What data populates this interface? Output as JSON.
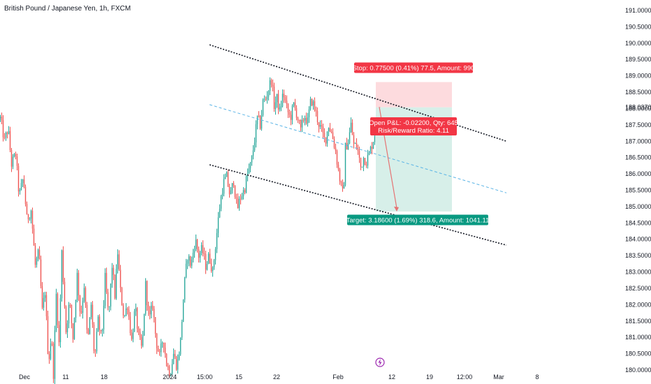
{
  "header": {
    "title": "British Pound / Japanese Yen, 1h, FXCM"
  },
  "colors": {
    "up": "#26a69a",
    "down": "#ef5350",
    "stop_zone": "#fddbde",
    "target_zone": "#d7efe9",
    "stop_label": "#f23645",
    "target_label": "#089981",
    "pnl_label": "#f23645",
    "mid_line": "#5ab4e6",
    "channel_line": "#131722",
    "arrow": "#e57373",
    "event_icon": "#9c27b0"
  },
  "icons": {
    "event": "lightning-icon"
  },
  "chart_data": {
    "type": "candlestick",
    "symbol": "British Pound / Japanese Yen",
    "interval": "1h",
    "source": "FXCM",
    "ylim": [
      179.8,
      191.2
    ],
    "y_ticks": [
      "191.00000",
      "190.50000",
      "190.00000",
      "189.50000",
      "189.00000",
      "188.50000",
      "188.00000",
      "187.50000",
      "187.00000",
      "186.50000",
      "186.00000",
      "185.50000",
      "185.00000",
      "184.50000",
      "184.00000",
      "183.50000",
      "183.00000",
      "182.50000",
      "182.00000",
      "181.50000",
      "181.00000",
      "180.50000",
      "180.00000"
    ],
    "x_ticks": [
      "Dec",
      "11",
      "18",
      "2024",
      "15:00",
      "15",
      "22",
      "Feb",
      "12",
      "19",
      "12:00",
      "Mar",
      "8"
    ],
    "current_price": "188.03700",
    "anchors": [
      [
        0,
        187.7
      ],
      [
        6,
        187.0
      ],
      [
        11,
        187.4
      ],
      [
        16,
        186.3
      ],
      [
        22,
        186.6
      ],
      [
        27,
        185.3
      ],
      [
        33,
        185.9
      ],
      [
        38,
        184.6
      ],
      [
        44,
        184.9
      ],
      [
        50,
        183.2
      ],
      [
        55,
        183.6
      ],
      [
        60,
        181.8
      ],
      [
        64,
        182.4
      ],
      [
        69,
        180.2
      ],
      [
        73,
        181.1
      ],
      [
        76,
        179.9
      ],
      [
        80,
        182.3
      ],
      [
        84,
        180.8
      ],
      [
        88,
        183.6
      ],
      [
        94,
        181.2
      ],
      [
        99,
        182.1
      ],
      [
        104,
        181.0
      ],
      [
        110,
        182.9
      ],
      [
        115,
        181.6
      ],
      [
        120,
        182.6
      ],
      [
        125,
        180.8
      ],
      [
        130,
        182.0
      ],
      [
        135,
        180.3
      ],
      [
        140,
        181.5
      ],
      [
        145,
        180.9
      ],
      [
        150,
        182.8
      ],
      [
        155,
        181.6
      ],
      [
        160,
        183.2
      ],
      [
        164,
        182.3
      ],
      [
        168,
        183.6
      ],
      [
        172,
        182.4
      ],
      [
        177,
        181.6
      ],
      [
        182,
        182.0
      ],
      [
        188,
        180.9
      ],
      [
        193,
        181.9
      ],
      [
        198,
        181.0
      ],
      [
        203,
        180.6
      ],
      [
        208,
        182.6
      ],
      [
        213,
        181.5
      ],
      [
        218,
        182.0
      ],
      [
        223,
        180.9
      ],
      [
        228,
        180.4
      ],
      [
        233,
        181.0
      ],
      [
        238,
        180.2
      ],
      [
        243,
        179.9
      ],
      [
        248,
        180.5
      ],
      [
        253,
        180.1
      ],
      [
        258,
        180.9
      ],
      [
        263,
        182.5
      ],
      [
        268,
        183.5
      ],
      [
        273,
        183.2
      ],
      [
        279,
        184.0
      ],
      [
        284,
        183.5
      ],
      [
        289,
        183.7
      ],
      [
        294,
        183.2
      ],
      [
        299,
        183.5
      ],
      [
        304,
        183.0
      ],
      [
        309,
        184.0
      ],
      [
        314,
        185.0
      ],
      [
        319,
        185.7
      ],
      [
        324,
        185.9
      ],
      [
        329,
        185.3
      ],
      [
        334,
        185.8
      ],
      [
        339,
        184.9
      ],
      [
        344,
        185.3
      ],
      [
        349,
        185.5
      ],
      [
        354,
        186.0
      ],
      [
        359,
        186.3
      ],
      [
        363,
        186.9
      ],
      [
        368,
        187.7
      ],
      [
        372,
        187.5
      ],
      [
        376,
        188.2
      ],
      [
        380,
        188.3
      ],
      [
        384,
        188.6
      ],
      [
        388,
        188.9
      ],
      [
        392,
        188.1
      ],
      [
        396,
        188.3
      ],
      [
        400,
        187.9
      ],
      [
        405,
        188.5
      ],
      [
        410,
        188.0
      ],
      [
        415,
        187.7
      ],
      [
        420,
        188.1
      ],
      [
        425,
        187.8
      ],
      [
        430,
        187.3
      ],
      [
        435,
        187.8
      ],
      [
        440,
        187.6
      ],
      [
        445,
        188.3
      ],
      [
        450,
        188.0
      ],
      [
        455,
        187.6
      ],
      [
        460,
        187.3
      ],
      [
        465,
        187.0
      ],
      [
        470,
        187.5
      ],
      [
        475,
        187.2
      ],
      [
        480,
        186.7
      ],
      [
        484,
        186.1
      ],
      [
        488,
        185.6
      ],
      [
        491,
        185.3
      ],
      [
        494,
        186.8
      ],
      [
        498,
        187.0
      ],
      [
        502,
        187.5
      ],
      [
        506,
        186.9
      ],
      [
        511,
        186.8
      ],
      [
        516,
        186.2
      ],
      [
        520,
        186.5
      ],
      [
        524,
        186.4
      ],
      [
        528,
        186.6
      ],
      [
        532,
        186.9
      ],
      [
        536,
        187.2
      ],
      [
        540,
        187.6
      ],
      [
        544,
        188.1
      ]
    ],
    "drawings": {
      "channel_upper": {
        "from": [
          "Dec 30",
          189.95
        ],
        "to": [
          "Mar",
          187.0
        ]
      },
      "channel_lower": {
        "from": [
          "Dec 30",
          186.28
        ],
        "to": [
          "Mar",
          183.82
        ]
      },
      "channel_mid": {
        "from": [
          "Dec 30",
          188.12
        ],
        "to": [
          "Mar",
          185.42
        ]
      }
    },
    "position": {
      "type": "short",
      "entry": 188.037,
      "stop": 188.81,
      "target": 184.85,
      "stop_label": "Stop: 0.77500 (0.41%) 77.5, Amount: 990",
      "pnl_label_line1": "Open P&L: -0.02200, Qty: 645",
      "pnl_label_line2": "Risk/Reward Ratio: 4.11",
      "target_label": "Target: 3.18600 (1.69%) 318.6, Amount: 1041.11"
    }
  }
}
